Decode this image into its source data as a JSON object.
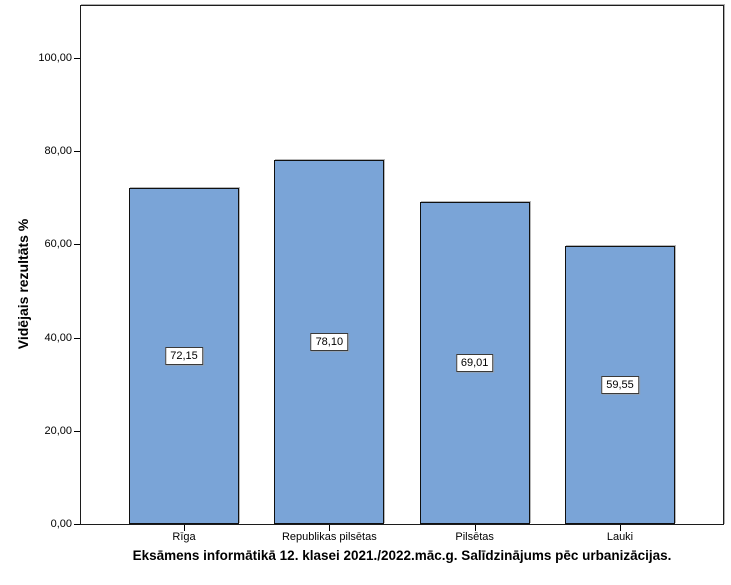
{
  "chart_data": {
    "type": "bar",
    "title": "Eksāmens informātikā 12. klasei 2021./2022.māc.g. Salīdzinājums pēc urbanizācijas.",
    "ylabel": "Vidējais rezultāts %",
    "xlabel": "",
    "categories": [
      "Rīga",
      "Republikas pilsētas",
      "Pilsētas",
      "Lauki"
    ],
    "values": [
      72.15,
      78.1,
      69.01,
      59.55
    ],
    "value_labels": [
      "72,15",
      "78,10",
      "69,01",
      "59,55"
    ],
    "y_ticks": [
      {
        "value": 0,
        "label": "0,00"
      },
      {
        "value": 20,
        "label": "20,00"
      },
      {
        "value": 40,
        "label": "40,00"
      },
      {
        "value": 60,
        "label": "60,00"
      },
      {
        "value": 80,
        "label": "80,00"
      },
      {
        "value": 100,
        "label": "100,00"
      }
    ],
    "ylim": [
      0,
      111.4
    ],
    "grid": false,
    "legend": "none",
    "decimal_separator": ",",
    "colors": {
      "bar_fill": "#7AA4D7",
      "bar_border": "#101010",
      "frame": "#1c1c1c",
      "background": "#ffffff",
      "text": "#000000",
      "value_box_bg": "#ffffff",
      "value_box_border": "#3a3a3a"
    }
  }
}
